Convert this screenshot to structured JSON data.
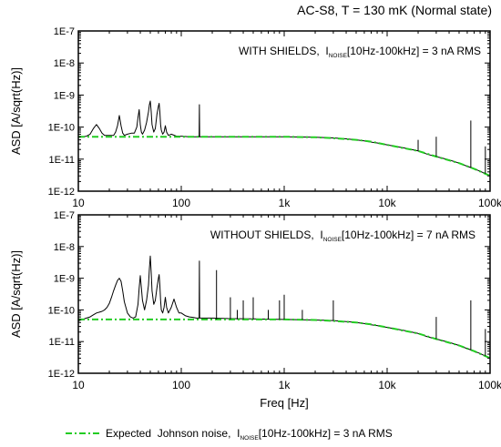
{
  "figure_title": "AC-S8, T = 130 mK (Normal state)",
  "chart_data": [
    {
      "type": "line",
      "panel": "top",
      "annotation": {
        "prefix": "WITH SHIELDS,  ",
        "symbol": "I",
        "subscript": "NOISE",
        "suffix": "[10Hz-100kHz] = 3 nA RMS"
      },
      "ylabel": "ASD [A/sqrt(Hz)]",
      "xlabel": "",
      "xscale": "log",
      "yscale": "log",
      "xlim": [
        10,
        100000
      ],
      "ylim": [
        1e-12,
        1e-07
      ],
      "xticks": [
        10,
        100,
        1000,
        10000,
        100000
      ],
      "xtick_labels": [
        "10",
        "100",
        "1k",
        "10k",
        "100k"
      ],
      "yticks": [
        1e-12,
        1e-11,
        1e-10,
        1e-09,
        1e-08,
        1e-07
      ],
      "ytick_labels": [
        "1E-12",
        "1E-11",
        "1E-10",
        "1E-9",
        "1E-8",
        "1E-7"
      ],
      "series": [
        {
          "color": "#000000",
          "style": "solid",
          "x": [
            10,
            11,
            12,
            13,
            14,
            15,
            16,
            17,
            18,
            20,
            22,
            23,
            24,
            25,
            26,
            27,
            28,
            30,
            33,
            35,
            37,
            38,
            39,
            40,
            41,
            42,
            44,
            46,
            48,
            49,
            50,
            51,
            52,
            54,
            56,
            58,
            60,
            61,
            62,
            63,
            64,
            66,
            68,
            70,
            72,
            75,
            80,
            90,
            100,
            120,
            140,
            149,
            150,
            151,
            170,
            200,
            300,
            500,
            700,
            1000,
            1500,
            2000,
            3000,
            4000,
            5000,
            6000,
            7000,
            8000,
            10000,
            15000,
            20000,
            25000,
            30000,
            40000,
            50000,
            60000,
            70000,
            80000,
            90000,
            100000
          ],
          "y": [
            4.8e-11,
            5e-11,
            5.2e-11,
            6e-11,
            9e-11,
            1.2e-10,
            9e-11,
            6.5e-11,
            5.5e-11,
            5.5e-11,
            5.5e-11,
            7e-11,
            1.1e-10,
            2.3e-10,
            1.1e-10,
            6.5e-11,
            5.5e-11,
            6e-11,
            6.5e-11,
            6.5e-11,
            1e-10,
            2e-10,
            3.5e-10,
            1.2e-10,
            7e-11,
            6e-11,
            8e-11,
            1.4e-10,
            3e-10,
            5e-10,
            6.5e-10,
            3e-10,
            1.2e-10,
            7e-11,
            9e-11,
            2.5e-10,
            4.5e-10,
            5.5e-10,
            3e-10,
            1.2e-10,
            8e-11,
            6e-11,
            7e-11,
            1.1e-10,
            7e-11,
            5.5e-11,
            6e-11,
            5.2e-11,
            5.2e-11,
            5e-11,
            5e-11,
            5e-11,
            5e-10,
            5e-11,
            5e-11,
            5e-11,
            5e-11,
            5e-11,
            5e-11,
            5e-11,
            4.9e-11,
            4.8e-11,
            4.6e-11,
            4.3e-11,
            4e-11,
            3.7e-11,
            3.4e-11,
            3.2e-11,
            2.8e-11,
            2.2e-11,
            1.8e-11,
            1.4e-11,
            1.2e-11,
            9.5e-12,
            7.5e-12,
            6e-12,
            5e-12,
            4.2e-12,
            3.5e-12,
            3e-12
          ]
        },
        {
          "name": "Expected  Johnson noise,",
          "color": "#22cc22",
          "style": "dash-dot",
          "x": [
            10,
            100,
            1000,
            2000,
            3000,
            5000,
            7000,
            10000,
            20000,
            30000,
            50000,
            70000,
            100000
          ],
          "y": [
            5e-11,
            5e-11,
            5e-11,
            4.8e-11,
            4.5e-11,
            4e-11,
            3.5e-11,
            2.8e-11,
            1.8e-11,
            1.2e-11,
            7.5e-12,
            5e-12,
            3e-12
          ]
        }
      ],
      "spikes": [
        {
          "x": 20000,
          "y": 4e-11
        },
        {
          "x": 30000,
          "y": 5e-11
        },
        {
          "x": 65000,
          "y": 1.6e-10
        },
        {
          "x": 90000,
          "y": 2.5e-11
        }
      ]
    },
    {
      "type": "line",
      "panel": "bottom",
      "annotation": {
        "prefix": "WITHOUT SHIELDS,  ",
        "symbol": "I",
        "subscript": "NOISE",
        "suffix": "[10Hz-100kHz] = 7 nA RMS"
      },
      "ylabel": "ASD [A/sqrt(Hz)]",
      "xlabel": "Freq [Hz]",
      "xscale": "log",
      "yscale": "log",
      "xlim": [
        10,
        100000
      ],
      "ylim": [
        1e-12,
        1e-07
      ],
      "xticks": [
        10,
        100,
        1000,
        10000,
        100000
      ],
      "xtick_labels": [
        "10",
        "100",
        "1k",
        "10k",
        "100k"
      ],
      "yticks": [
        1e-12,
        1e-11,
        1e-10,
        1e-09,
        1e-08,
        1e-07
      ],
      "ytick_labels": [
        "1E-12",
        "1E-11",
        "1E-10",
        "1E-9",
        "1E-8",
        "1E-7"
      ],
      "series": [
        {
          "color": "#000000",
          "style": "solid",
          "x": [
            10,
            11,
            12,
            13,
            14,
            15,
            16,
            17,
            18,
            19,
            20,
            21,
            22,
            23,
            24,
            25,
            26,
            27,
            28,
            30,
            32,
            34,
            36,
            38,
            39,
            40,
            41,
            42,
            44,
            46,
            48,
            49,
            50,
            51,
            52,
            54,
            56,
            58,
            60,
            61,
            62,
            63,
            64,
            66,
            68,
            70,
            72,
            75,
            80,
            85,
            90,
            95,
            100,
            110,
            120,
            130,
            140,
            149,
            150,
            151,
            170,
            200,
            300,
            500,
            700,
            1000,
            1500,
            2000,
            3000,
            4000,
            5000,
            6000,
            7000,
            8000,
            10000,
            15000,
            20000,
            25000,
            30000,
            40000,
            50000,
            60000,
            70000,
            80000,
            90000,
            100000
          ],
          "y": [
            4.5e-11,
            5e-11,
            5.5e-11,
            6e-11,
            7e-11,
            8e-11,
            8.5e-11,
            9e-11,
            1e-10,
            1.2e-10,
            1.6e-10,
            2.5e-10,
            4e-10,
            6e-10,
            8.5e-10,
            1e-09,
            8e-10,
            4e-10,
            1.8e-10,
            8e-11,
            6e-11,
            5.5e-11,
            6e-11,
            1.5e-10,
            5e-10,
            1.2e-09,
            5e-10,
            2e-10,
            1e-10,
            2e-10,
            6e-10,
            2e-09,
            5e-09,
            1.5e-09,
            4e-10,
            1.5e-10,
            2e-10,
            5e-10,
            1e-09,
            1.3e-09,
            6e-10,
            2e-10,
            1e-10,
            8e-11,
            1.2e-10,
            2.5e-10,
            1.2e-10,
            8e-11,
            1.2e-10,
            2.2e-10,
            1.2e-10,
            8e-11,
            8e-11,
            6.5e-11,
            6e-11,
            5.8e-11,
            5.5e-11,
            5.5e-11,
            3.5e-09,
            5.5e-11,
            5.5e-11,
            5.5e-11,
            5.3e-11,
            5.2e-11,
            5.1e-11,
            5e-11,
            4.9e-11,
            4.8e-11,
            4.6e-11,
            4.3e-11,
            4e-11,
            3.7e-11,
            3.4e-11,
            3.2e-11,
            2.8e-11,
            2.2e-11,
            1.8e-11,
            1.4e-11,
            1.2e-11,
            9.5e-12,
            7.5e-12,
            6e-12,
            5e-12,
            4.2e-12,
            3.5e-12,
            3e-12
          ]
        },
        {
          "name": "Expected  Johnson noise,",
          "color": "#22cc22",
          "style": "dash-dot",
          "x": [
            10,
            100,
            1000,
            2000,
            3000,
            5000,
            7000,
            10000,
            20000,
            30000,
            50000,
            70000,
            100000
          ],
          "y": [
            5e-11,
            5e-11,
            5e-11,
            4.8e-11,
            4.5e-11,
            4e-11,
            3.5e-11,
            2.8e-11,
            1.8e-11,
            1.2e-11,
            7.5e-12,
            5e-12,
            3e-12
          ]
        }
      ],
      "spikes": [
        {
          "x": 220,
          "y": 1.8e-09
        },
        {
          "x": 300,
          "y": 2.5e-10
        },
        {
          "x": 350,
          "y": 1e-10
        },
        {
          "x": 400,
          "y": 2e-10
        },
        {
          "x": 500,
          "y": 2.5e-10
        },
        {
          "x": 700,
          "y": 1e-10
        },
        {
          "x": 900,
          "y": 2e-10
        },
        {
          "x": 1000,
          "y": 3e-10
        },
        {
          "x": 1500,
          "y": 1e-10
        },
        {
          "x": 3000,
          "y": 2e-10
        },
        {
          "x": 30000,
          "y": 6e-11
        },
        {
          "x": 65000,
          "y": 2e-10
        },
        {
          "x": 90000,
          "y": 2.5e-11
        }
      ]
    }
  ],
  "legend": {
    "label": "Expected  Johnson noise,",
    "symbol": "I",
    "subscript": "NOISE",
    "suffix": "[10Hz-100kHz] = 3 nA RMS",
    "color": "#22cc22"
  }
}
